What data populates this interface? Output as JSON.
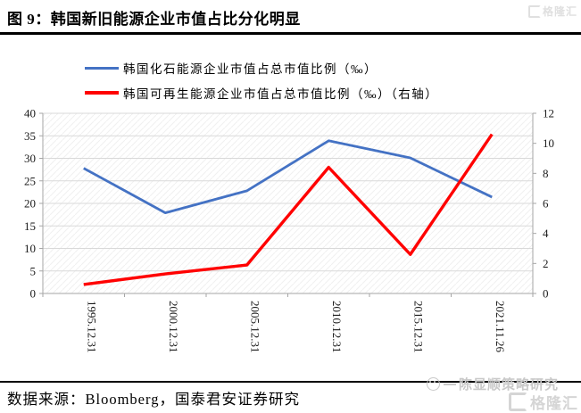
{
  "header": {
    "title": "图 9：韩国新旧能源企业市值占比分化明显"
  },
  "footer": {
    "source": "数据来源：Bloomberg，国泰君安证券研究"
  },
  "watermarks": {
    "analyst": "陈显顺策略研究",
    "brand": "格隆汇",
    "top_right": "格隆汇"
  },
  "icons": {
    "analyst_face": "smiley-face-icon",
    "brand_logo": "gelonghui-g-logo"
  },
  "colors": {
    "fossil_line": "#4472C4",
    "renewable_line": "#FF0000",
    "gridline": "#D9D9D9",
    "axis": "#A6A6A6",
    "title_rule": "#000000"
  },
  "chart_data": {
    "type": "line",
    "title": "韩国新旧能源企业市值占比分化明显",
    "categories": [
      "1995.12.31",
      "2000.12.31",
      "2005.12.31",
      "2010.12.31",
      "2015.12.31",
      "2021.11.26"
    ],
    "series": [
      {
        "name": "韩国化石能源企业市值占总市值比例（‰）",
        "axis": "left",
        "color": "#4472C4",
        "values": [
          27.8,
          17.9,
          22.8,
          33.9,
          30.1,
          21.4
        ]
      },
      {
        "name": "韩国可再生能源企业市值占总市值比例（‰）（右轴）",
        "axis": "right",
        "color": "#FF0000",
        "values": [
          0.6,
          1.3,
          1.9,
          8.4,
          2.6,
          10.6
        ]
      }
    ],
    "left_axis": {
      "min": 0,
      "max": 40,
      "step": 5
    },
    "right_axis": {
      "min": 0,
      "max": 12,
      "step": 2
    },
    "grid": true,
    "legend_position": "top-left",
    "plot_background": "diagonal-hatch"
  }
}
